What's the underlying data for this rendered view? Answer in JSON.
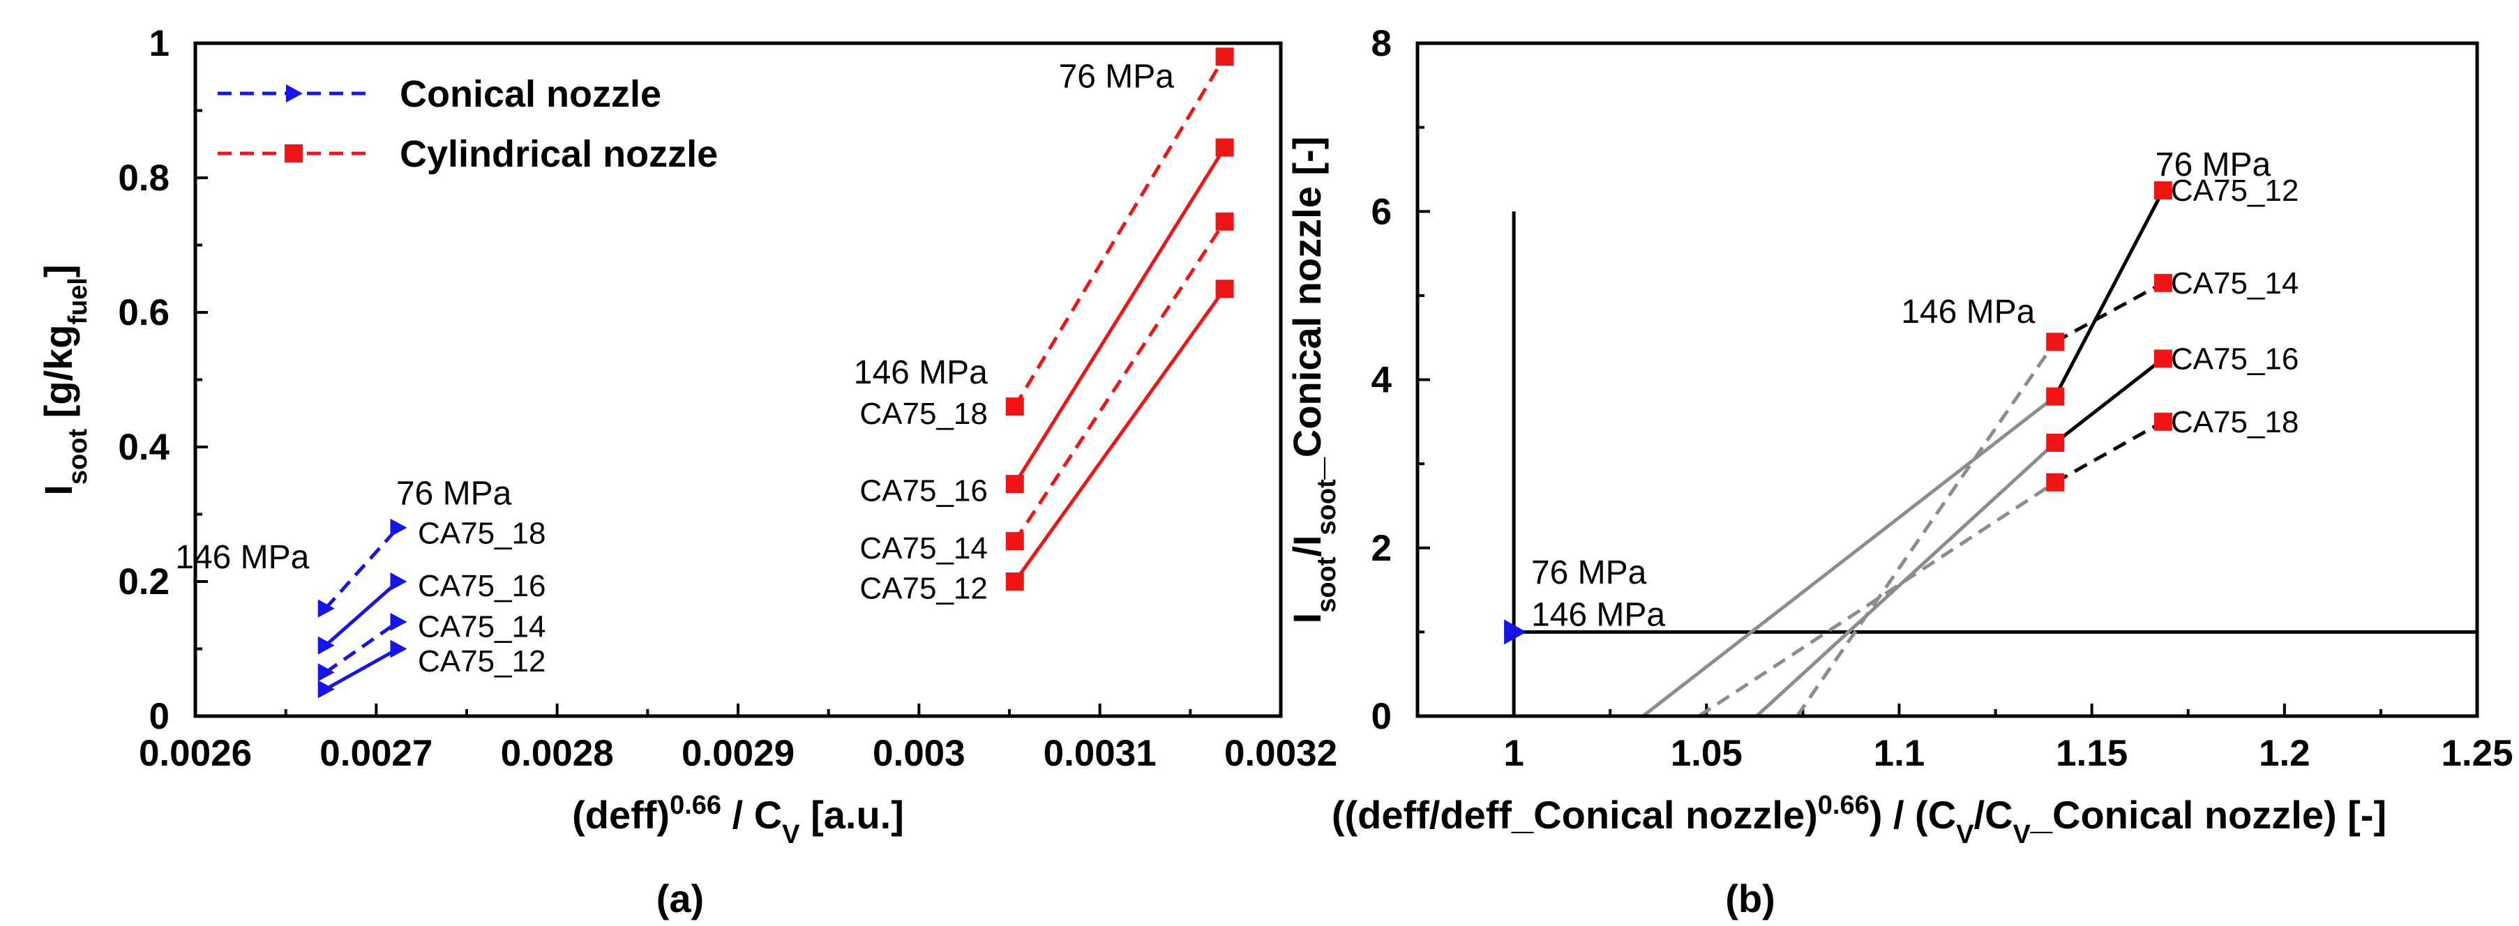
{
  "chart_data": [
    {
      "panel": "(a)",
      "type": "line",
      "xlabel": {
        "main": "(deff)",
        "sup": "0.66",
        "mid": " / C",
        "sub": "V",
        "end": " [a.u.]"
      },
      "ylabel": {
        "main": "I",
        "sub": "soot",
        "mid": " [g/kg",
        "sub2": "fuel",
        "end": "]"
      },
      "xlim": [
        0.0026,
        0.0032
      ],
      "ylim": [
        0,
        1
      ],
      "xticks": [
        0.0026,
        0.0027,
        0.0028,
        0.0029,
        0.003,
        0.0031,
        0.0032
      ],
      "xtick_labels": [
        "0.0026",
        "0.0027",
        "0.0028",
        "0.0029",
        "0.003",
        "0.0031",
        "0.0032"
      ],
      "yticks": [
        0,
        0.2,
        0.4,
        0.6,
        0.8,
        1
      ],
      "ytick_labels": [
        "0",
        "0.2",
        "0.4",
        "0.6",
        "0.8",
        "1"
      ],
      "legend": {
        "position": "top-left",
        "entries": [
          {
            "name": "Conical nozzle",
            "color": "#1515e8",
            "marker": "triangle-right"
          },
          {
            "name": "Cylindrical nozzle",
            "color": "#f01414",
            "marker": "square"
          }
        ]
      },
      "series": [
        {
          "name": "Conical nozzle",
          "label": "CA75_18",
          "style": "dashed",
          "color": "#1515e8",
          "x": [
            0.002672,
            0.002712
          ],
          "y": [
            0.16,
            0.28
          ]
        },
        {
          "name": "Conical nozzle",
          "label": "CA75_16",
          "style": "solid",
          "color": "#1515e8",
          "x": [
            0.002672,
            0.002712
          ],
          "y": [
            0.105,
            0.2
          ]
        },
        {
          "name": "Conical nozzle",
          "label": "CA75_14",
          "style": "dashed",
          "color": "#1515e8",
          "x": [
            0.002672,
            0.002712
          ],
          "y": [
            0.065,
            0.14
          ]
        },
        {
          "name": "Conical nozzle",
          "label": "CA75_12",
          "style": "solid",
          "color": "#1515e8",
          "x": [
            0.002672,
            0.002712
          ],
          "y": [
            0.04,
            0.1
          ]
        },
        {
          "name": "Cylindrical nozzle",
          "label": "CA75_18",
          "style": "dashed",
          "color": "#f01414",
          "x": [
            0.003053,
            0.003169
          ],
          "y": [
            0.46,
            0.98
          ]
        },
        {
          "name": "Cylindrical nozzle",
          "label": "CA75_16",
          "style": "solid",
          "color": "#f01414",
          "x": [
            0.003053,
            0.003169
          ],
          "y": [
            0.345,
            0.845
          ]
        },
        {
          "name": "Cylindrical nozzle",
          "label": "CA75_14",
          "style": "dashed",
          "color": "#f01414",
          "x": [
            0.003053,
            0.003169
          ],
          "y": [
            0.26,
            0.735
          ]
        },
        {
          "name": "Cylindrical nozzle",
          "label": "CA75_12",
          "style": "solid",
          "color": "#f01414",
          "x": [
            0.003053,
            0.003169
          ],
          "y": [
            0.2,
            0.635
          ]
        }
      ],
      "annotations": [
        {
          "text": "76 MPa",
          "x": 0.002711,
          "y": 0.33
        },
        {
          "text": "146 MPa",
          "x": 0.002663,
          "y": 0.235
        },
        {
          "text": "CA75_18",
          "x": 0.002723,
          "y": 0.272
        },
        {
          "text": "CA75_16",
          "x": 0.002723,
          "y": 0.194
        },
        {
          "text": "CA75_14",
          "x": 0.002723,
          "y": 0.133
        },
        {
          "text": "CA75_12",
          "x": 0.002723,
          "y": 0.082
        },
        {
          "text": "76 MPa",
          "x": 0.003141,
          "y": 0.95
        },
        {
          "text": "146 MPa",
          "x": 0.003038,
          "y": 0.51
        },
        {
          "text": "CA75_18",
          "x": 0.003038,
          "y": 0.45
        },
        {
          "text": "CA75_16",
          "x": 0.003038,
          "y": 0.335
        },
        {
          "text": "CA75_14",
          "x": 0.003038,
          "y": 0.25
        },
        {
          "text": "CA75_12",
          "x": 0.003038,
          "y": 0.19
        }
      ]
    },
    {
      "panel": "(b)",
      "type": "line",
      "xlabel": {
        "main": "((deff/deff_Conical nozzle)",
        "sup": "0.66",
        "mid": ") / (C",
        "sub": "V",
        "end": "/C",
        "sub2": "V",
        "end2": "_Conical nozzle) [-]"
      },
      "ylabel": {
        "main": "I",
        "sub": "soot",
        "mid": "/I",
        "sub2": "soot",
        "end": "_Conical nozzle [-]"
      },
      "xlim": [
        0.975,
        1.25
      ],
      "ylim": [
        0,
        8
      ],
      "xticks": [
        1,
        1.05,
        1.1,
        1.15,
        1.2,
        1.25
      ],
      "xtick_labels": [
        "1",
        "1.05",
        "1.1",
        "1.15",
        "1.2",
        "1.25"
      ],
      "yticks": [
        0,
        2,
        4,
        6,
        8
      ],
      "ytick_labels": [
        "0",
        "2",
        "4",
        "6",
        "8"
      ],
      "reference_lines": [
        {
          "orientation": "horizontal",
          "y": 1,
          "x": [
            1,
            1.25
          ]
        },
        {
          "orientation": "vertical",
          "x": 1,
          "y": [
            0,
            6
          ]
        }
      ],
      "conical_point": {
        "x": 1,
        "y": 1,
        "color": "#1515e8",
        "marker": "triangle-right"
      },
      "series": [
        {
          "label": "CA75_12",
          "style": "solid",
          "color": "#000000",
          "x": [
            1.1405,
            1.1685
          ],
          "y": [
            3.8,
            6.25
          ],
          "trend": {
            "x": [
              1.0335,
              1.1405
            ],
            "y": [
              0,
              3.8
            ],
            "style": "solid",
            "color": "#8c8c8c"
          }
        },
        {
          "label": "CA75_14",
          "style": "dashed",
          "color": "#000000",
          "x": [
            1.1405,
            1.1685
          ],
          "y": [
            4.45,
            5.15
          ],
          "trend": {
            "x": [
              1.0735,
              1.1405
            ],
            "y": [
              0,
              4.45
            ],
            "style": "dashed",
            "color": "#8c8c8c"
          }
        },
        {
          "label": "CA75_16",
          "style": "solid",
          "color": "#000000",
          "x": [
            1.1405,
            1.1685
          ],
          "y": [
            3.25,
            4.25
          ],
          "trend": {
            "x": [
              1.063,
              1.1405
            ],
            "y": [
              0,
              3.25
            ],
            "style": "solid",
            "color": "#8c8c8c"
          }
        },
        {
          "label": "CA75_18",
          "style": "dashed",
          "color": "#000000",
          "x": [
            1.1405,
            1.1685
          ],
          "y": [
            2.78,
            3.5
          ],
          "trend": {
            "x": [
              1.048,
              1.1405
            ],
            "y": [
              0,
              2.78
            ],
            "style": "dashed",
            "color": "#8c8c8c"
          }
        }
      ],
      "marker_color": "#f01414",
      "annotations": [
        {
          "text": "76 MPa",
          "x": 1.1665,
          "y": 6.55
        },
        {
          "text": "146 MPa",
          "x": 1.1005,
          "y": 4.8
        },
        {
          "text": "CA75_12",
          "x": 1.1705,
          "y": 6.25
        },
        {
          "text": "CA75_14",
          "x": 1.1705,
          "y": 5.15
        },
        {
          "text": "CA75_16",
          "x": 1.1705,
          "y": 4.25
        },
        {
          "text": "CA75_18",
          "x": 1.1705,
          "y": 3.5
        },
        {
          "text": "76 MPa",
          "x": 1.0045,
          "y": 1.7
        },
        {
          "text": "146 MPa",
          "x": 1.0045,
          "y": 1.2
        }
      ]
    }
  ]
}
